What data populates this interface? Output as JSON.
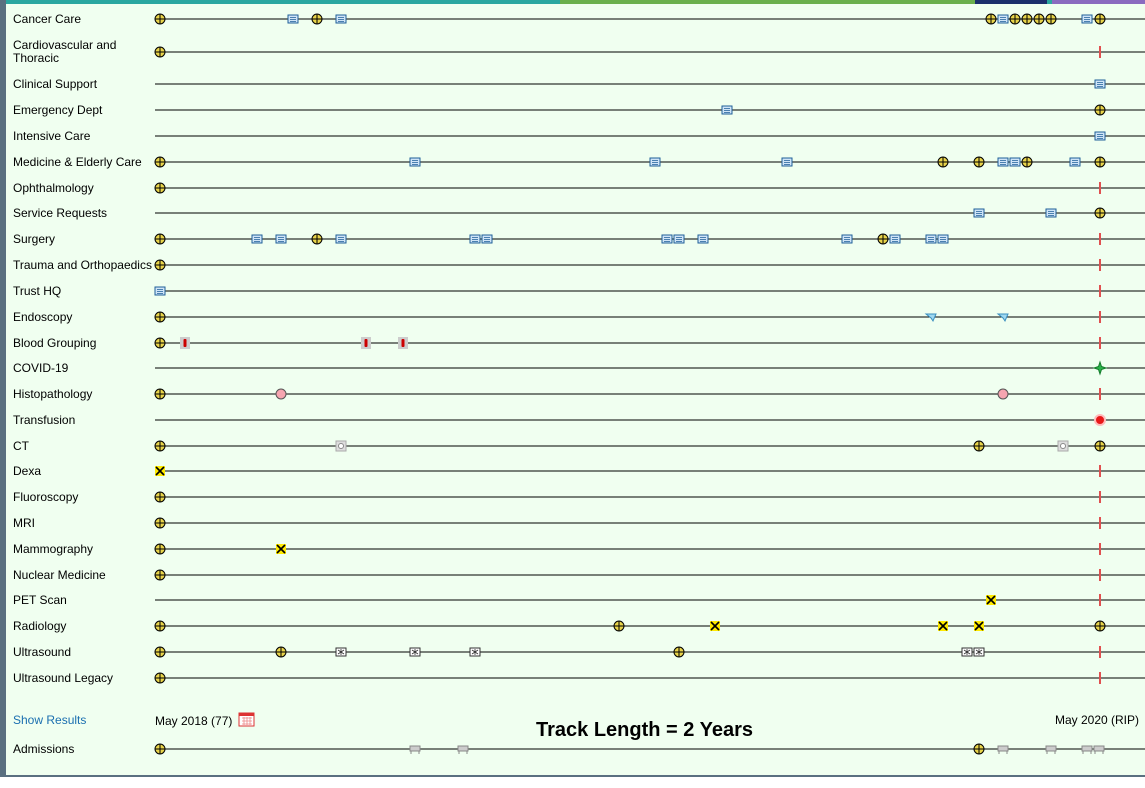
{
  "rows": [
    "Cancer Care",
    "Cardiovascular and Thoracic",
    "Clinical Support",
    "Emergency Dept",
    "Intensive Care",
    "Medicine & Elderly Care",
    "Ophthalmology",
    "Service Requests",
    "Surgery",
    "Trauma and Orthopaedics",
    "Trust HQ",
    "Endoscopy",
    "Blood Grouping",
    "COVID-19",
    "Histopathology",
    "Transfusion",
    "CT",
    "Dexa",
    "Fluoroscopy",
    "MRI",
    "Mammography",
    "Nuclear Medicine",
    "PET Scan",
    "Radiology",
    "Ultrasound",
    "Ultrasound Legacy"
  ],
  "footer": {
    "show_results": "Show Results",
    "start": "May 2018 (77)",
    "track_length": "Track Length = 2 Years",
    "end": "May 2020 (RIP)"
  },
  "admissions": "Admissions"
}
